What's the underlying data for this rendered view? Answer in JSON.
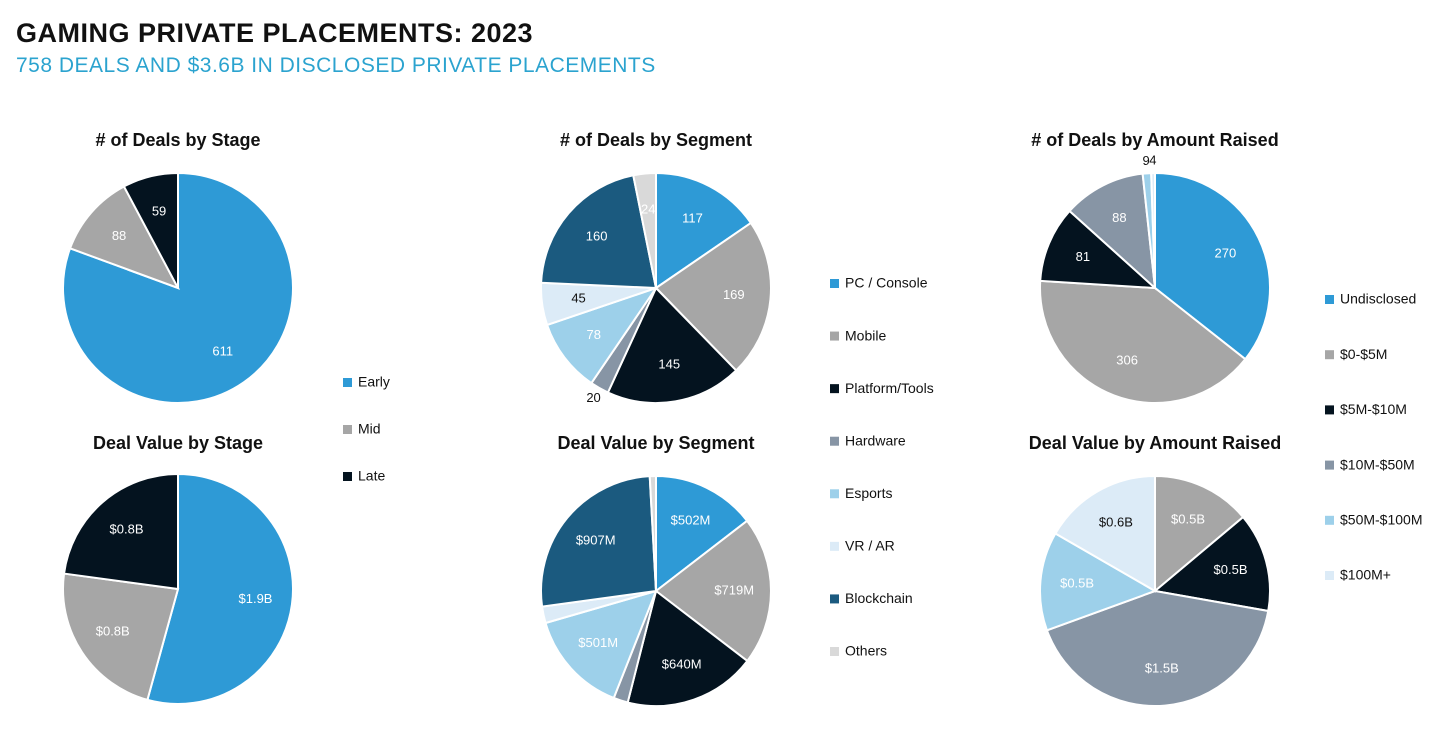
{
  "title": "GAMING PRIVATE PLACEMENTS: 2023",
  "subtitle": "758 DEALS AND $3.6B IN DISCLOSED PRIVATE PLACEMENTS",
  "chart_data": [
    {
      "type": "pie",
      "categories": [
        "Early",
        "Mid",
        "Late"
      ],
      "colors": [
        "#2e9ad6",
        "#a6a6a6",
        "#04131f"
      ],
      "series": [
        {
          "name": "# of Deals by Stage",
          "values": [
            611,
            88,
            59
          ]
        },
        {
          "name": "Deal Value by Stage",
          "values": [
            1.9,
            0.8,
            0.8
          ],
          "value_labels": [
            "$1.9B",
            "$0.8B",
            "$0.8B"
          ]
        }
      ]
    },
    {
      "type": "pie",
      "categories": [
        "PC / Console",
        "Mobile",
        "Platform/Tools",
        "Hardware",
        "Esports",
        "VR / AR",
        "Blockchain",
        "Others"
      ],
      "colors": [
        "#2e9ad6",
        "#a6a6a6",
        "#04131f",
        "#8795a5",
        "#9dd0ea",
        "#dcebf7",
        "#1b5a7f",
        "#d9d9d9"
      ],
      "series": [
        {
          "name": "# of Deals by Segment",
          "values": [
            117,
            169,
            145,
            20,
            78,
            45,
            160,
            24
          ]
        },
        {
          "name": "Deal Value by Segment",
          "values": [
            502,
            719,
            640,
            70,
            501,
            80,
            907,
            30
          ],
          "value_labels": [
            "$502M",
            "$719M",
            "$640M",
            null,
            "$501M",
            null,
            "$907M",
            null
          ]
        }
      ]
    },
    {
      "type": "pie",
      "categories": [
        "Undisclosed",
        "$0-$5M",
        "$5M-$10M",
        "$10M-$50M",
        "$50M-$100M",
        "$100M+"
      ],
      "colors": [
        "#2e9ad6",
        "#a6a6a6",
        "#04131f",
        "#8795a5",
        "#9dd0ea",
        "#dcebf7"
      ],
      "series": [
        {
          "name": "# of Deals by Amount Raised",
          "values": [
            270,
            306,
            81,
            88,
            9,
            4
          ]
        },
        {
          "name": "Deal Value by Amount Raised",
          "values": [
            null,
            0.5,
            0.5,
            1.5,
            0.5,
            0.6
          ],
          "value_labels": [
            null,
            "$0.5B",
            "$0.5B",
            "$1.5B",
            "$0.5B",
            "$0.6B"
          ]
        }
      ]
    }
  ]
}
